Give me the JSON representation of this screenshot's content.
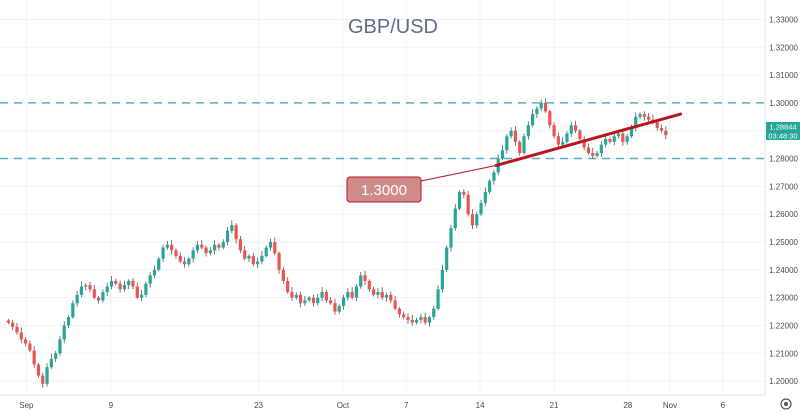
{
  "chart_data": {
    "type": "candlestick",
    "title": "GBP/USD",
    "ylim": [
      1.195,
      1.337
    ],
    "y_ticks": [
      "1.33000",
      "1.32000",
      "1.31000",
      "1.30000",
      "1.29000",
      "1.28000",
      "1.27000",
      "1.26000",
      "1.25000",
      "1.24000",
      "1.23000",
      "1.22000",
      "1.21000",
      "1.20000"
    ],
    "x_ticks": [
      {
        "label": "Sep",
        "day": 0
      },
      {
        "label": "9",
        "day": 8
      },
      {
        "label": "23",
        "day": 22
      },
      {
        "label": "Oct",
        "day": 30
      },
      {
        "label": "7",
        "day": 36
      },
      {
        "label": "14",
        "day": 43
      },
      {
        "label": "21",
        "day": 50
      },
      {
        "label": "28",
        "day": 57
      },
      {
        "label": "Nov",
        "day": 61
      },
      {
        "label": "6",
        "day": 66
      }
    ],
    "xlim_days": [
      -2.5,
      70
    ],
    "levels": [
      {
        "value": 1.3,
        "style": "dashed",
        "color": "#4fb3c8"
      },
      {
        "value": 1.28,
        "style": "dashed",
        "color": "#4fb3c8"
      }
    ],
    "trendline": {
      "start": {
        "day": 44.5,
        "value": 1.2775
      },
      "end": {
        "day": 62,
        "value": 1.296
      },
      "color": "#b7171b"
    },
    "callout": {
      "label": "1.3000",
      "color": "#cf8a8a"
    },
    "price_badge": {
      "price": "1.28844",
      "countdown": "03:48:30",
      "color": "#26a69a"
    },
    "close_series": [
      1.221,
      1.2195,
      1.2175,
      1.215,
      1.2135,
      1.211,
      1.206,
      1.202,
      1.199,
      1.205,
      1.208,
      1.21,
      1.215,
      1.22,
      1.223,
      1.228,
      1.231,
      1.234,
      1.2345,
      1.233,
      1.23,
      1.229,
      1.232,
      1.234,
      1.236,
      1.235,
      1.233,
      1.2345,
      1.236,
      1.234,
      1.23,
      1.231,
      1.235,
      1.238,
      1.24,
      1.244,
      1.248,
      1.249,
      1.247,
      1.245,
      1.243,
      1.242,
      1.244,
      1.247,
      1.249,
      1.248,
      1.246,
      1.247,
      1.249,
      1.248,
      1.25,
      1.254,
      1.256,
      1.251,
      1.247,
      1.244,
      1.245,
      1.242,
      1.243,
      1.245,
      1.248,
      1.25,
      1.246,
      1.24,
      1.236,
      1.232,
      1.23,
      1.231,
      1.228,
      1.229,
      1.23,
      1.228,
      1.23,
      1.232,
      1.229,
      1.228,
      1.225,
      1.227,
      1.23,
      1.232,
      1.23,
      1.234,
      1.238,
      1.236,
      1.233,
      1.231,
      1.232,
      1.23,
      1.231,
      1.229,
      1.226,
      1.224,
      1.223,
      1.222,
      1.221,
      1.222,
      1.223,
      1.221,
      1.223,
      1.226,
      1.233,
      1.24,
      1.248,
      1.255,
      1.262,
      1.268,
      1.267,
      1.26,
      1.256,
      1.26,
      1.264,
      1.268,
      1.272,
      1.275,
      1.28,
      1.283,
      1.288,
      1.29,
      1.286,
      1.282,
      1.288,
      1.292,
      1.296,
      1.298,
      1.3,
      1.297,
      1.292,
      1.288,
      1.285,
      1.286,
      1.289,
      1.292,
      1.29,
      1.287,
      1.284,
      1.282,
      1.281,
      1.282,
      1.285,
      1.287,
      1.286,
      1.288,
      1.289,
      1.286,
      1.288,
      1.291,
      1.295,
      1.296,
      1.295,
      1.294,
      1.293,
      1.291,
      1.29,
      1.2884
    ]
  }
}
